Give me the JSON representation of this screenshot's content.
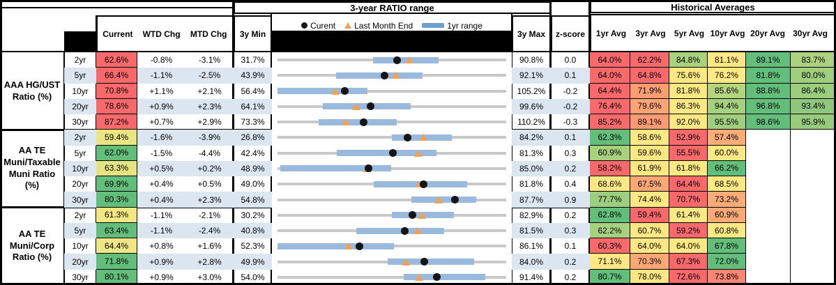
{
  "palette": {
    "band_blue": "#DCE6F1",
    "bar_blue": "#9ABADD",
    "legend_swatch_blue": "#6C9DD3",
    "triangle_orange": "#F2A054",
    "dot_black": "#151515",
    "track_gray": "#C9C9C9",
    "heat_red": "#F8696B",
    "heat_orange": "#FBA776",
    "heat_yellow": "#FFE884",
    "heat_lightgreen": "#A9D27F",
    "heat_green": "#63BE7B"
  },
  "header": {
    "range_title": "3-year RATIO range",
    "hist_title": "Historical Averages",
    "cols": {
      "current": "Current",
      "wtd": "WTD Chg",
      "mtd": "MTD Chg",
      "min": "3y Min",
      "max": "3y Max",
      "z": "z-score"
    },
    "avg_cols": [
      "1yr Avg",
      "3yr Avg",
      "5yr Avg",
      "10yr Avg",
      "20yr Avg",
      "30yr Avg"
    ],
    "legend": {
      "current": "Curent",
      "last_month": "Last Month End",
      "range": "1yr range"
    }
  },
  "chart_data": {
    "type": "table",
    "title": "3-year RATIO range",
    "subtitle": "Historical Averages",
    "bullet_semantics": {
      "dot": "Current",
      "triangle": "Last Month End",
      "bar": "1yr range",
      "axis": "scaled from 3y Min to 3y Max"
    },
    "columns": [
      "Current",
      "WTD Chg",
      "MTD Chg",
      "3y Min",
      "3y Max",
      "z-score",
      "1yr Avg",
      "3yr Avg",
      "5yr Avg",
      "10yr Avg",
      "20yr Avg",
      "30yr Avg"
    ],
    "sections": [
      {
        "id": "aaa-hg-ust",
        "label": "AAA HG/UST\nRatio (%)",
        "rows": [
          {
            "tenor": "2yr",
            "current": "62.6%",
            "current_bg": "#F8696B",
            "wtd": "-0.8%",
            "mtd": "-3.1%",
            "min": "31.7%",
            "max": "90.8%",
            "z": "0.0",
            "bullet": {
              "axis_min": 31.7,
              "axis_max": 90.8,
              "current": 62.6,
              "last_month_end": 65.7,
              "yr_range": [
                56.4,
                73.4
              ]
            },
            "avgs": [
              {
                "v": "64.0%",
                "bg": "#F8696B"
              },
              {
                "v": "62.2%",
                "bg": "#F8696B"
              },
              {
                "v": "84.8%",
                "bg": "#A9D27F"
              },
              {
                "v": "81.1%",
                "bg": "#FFE884"
              },
              {
                "v": "89.1%",
                "bg": "#63BE7B"
              },
              {
                "v": "83.7%",
                "bg": "#ABD37F"
              }
            ]
          },
          {
            "tenor": "5yr",
            "current": "66.4%",
            "current_bg": "#F8696B",
            "wtd": "-1.1%",
            "mtd": "-2.5%",
            "min": "43.9%",
            "max": "92.1%",
            "z": "0.1",
            "bullet": {
              "axis_min": 43.9,
              "axis_max": 92.1,
              "current": 66.4,
              "last_month_end": 68.9,
              "yr_range": [
                56.2,
                74.4
              ]
            },
            "avgs": [
              {
                "v": "64.0%",
                "bg": "#F8696B"
              },
              {
                "v": "64.8%",
                "bg": "#F8696B"
              },
              {
                "v": "75.6%",
                "bg": "#FFE884"
              },
              {
                "v": "76.2%",
                "bg": "#FEE983"
              },
              {
                "v": "81.8%",
                "bg": "#63BE7B"
              },
              {
                "v": "80.0%",
                "bg": "#9FCE7E"
              }
            ]
          },
          {
            "tenor": "10yr",
            "current": "70.8%",
            "current_bg": "#F8696B",
            "wtd": "+1.1%",
            "mtd": "+2.1%",
            "min": "56.4%",
            "max": "105.2%",
            "z": "-0.2",
            "bullet": {
              "axis_min": 56.4,
              "axis_max": 105.2,
              "current": 70.8,
              "last_month_end": 68.7,
              "yr_range": [
                56.4,
                75.6
              ]
            },
            "avgs": [
              {
                "v": "64.4%",
                "bg": "#F8696B"
              },
              {
                "v": "71.9%",
                "bg": "#FB9E74"
              },
              {
                "v": "81.8%",
                "bg": "#FFE884"
              },
              {
                "v": "85.6%",
                "bg": "#B3D580"
              },
              {
                "v": "88.8%",
                "bg": "#63BE7B"
              },
              {
                "v": "86.4%",
                "bg": "#9CCD7E"
              }
            ]
          },
          {
            "tenor": "20yr",
            "current": "78.6%",
            "current_bg": "#F8696B",
            "wtd": "+0.9%",
            "mtd": "+2.3%",
            "min": "64.1%",
            "max": "99.6%",
            "z": "-0.2",
            "bullet": {
              "axis_min": 64.1,
              "axis_max": 99.6,
              "current": 78.6,
              "last_month_end": 76.3,
              "yr_range": [
                71.1,
                84.8
              ]
            },
            "avgs": [
              {
                "v": "76.4%",
                "bg": "#F8696B"
              },
              {
                "v": "79.6%",
                "bg": "#FBA476"
              },
              {
                "v": "86.3%",
                "bg": "#FFE884"
              },
              {
                "v": "94.4%",
                "bg": "#A5D07E"
              },
              {
                "v": "96.8%",
                "bg": "#63BE7B"
              },
              {
                "v": "93.4%",
                "bg": "#8FC77C"
              }
            ]
          },
          {
            "tenor": "30yr",
            "current": "87.2%",
            "current_bg": "#F8696B",
            "wtd": "+0.7%",
            "mtd": "+2.9%",
            "min": "73.3%",
            "max": "110.2%",
            "z": "-0.3",
            "bullet": {
              "axis_min": 73.3,
              "axis_max": 110.2,
              "current": 87.2,
              "last_month_end": 84.3,
              "yr_range": [
                79.9,
                92.5
              ]
            },
            "avgs": [
              {
                "v": "85.2%",
                "bg": "#F8696B"
              },
              {
                "v": "89.1%",
                "bg": "#FB9A73"
              },
              {
                "v": "92.0%",
                "bg": "#FFE884"
              },
              {
                "v": "95.5%",
                "bg": "#A0CE7E"
              },
              {
                "v": "98.6%",
                "bg": "#63BE7B"
              },
              {
                "v": "95.9%",
                "bg": "#98CB7D"
              }
            ]
          }
        ]
      },
      {
        "id": "aa-te-muni-taxable",
        "label": "AA TE\nMuni/Taxable\nMuni Ratio\n(%)",
        "rows": [
          {
            "tenor": "2yr",
            "current": "59.4%",
            "current_bg": "#E9E582",
            "wtd": "-1.6%",
            "mtd": "-3.9%",
            "min": "26.8%",
            "max": "84.2%",
            "z": "0.1",
            "bullet": {
              "axis_min": 26.8,
              "axis_max": 84.2,
              "current": 59.4,
              "last_month_end": 63.3,
              "yr_range": [
                55.5,
                70.6
              ]
            },
            "avgs": [
              {
                "v": "62.3%",
                "bg": "#63BE7B"
              },
              {
                "v": "58.6%",
                "bg": "#FFE884"
              },
              {
                "v": "52.9%",
                "bg": "#F8696B"
              },
              {
                "v": "57.4%",
                "bg": "#FBAC77"
              },
              {
                "v": "",
                "bg": ""
              },
              {
                "v": "",
                "bg": ""
              }
            ]
          },
          {
            "tenor": "5yr",
            "current": "62.0%",
            "current_bg": "#63BE7B",
            "wtd": "-1.5%",
            "mtd": "-4.4%",
            "min": "42.4%",
            "max": "81.3%",
            "z": "0.3",
            "bullet": {
              "axis_min": 42.4,
              "axis_max": 81.3,
              "current": 62.0,
              "last_month_end": 66.4,
              "yr_range": [
                52.5,
                69.5
              ]
            },
            "avgs": [
              {
                "v": "60.9%",
                "bg": "#A8D17F"
              },
              {
                "v": "59.6%",
                "bg": "#FFE884"
              },
              {
                "v": "55.5%",
                "bg": "#F8696B"
              },
              {
                "v": "60.0%",
                "bg": "#FCE983"
              },
              {
                "v": "",
                "bg": ""
              },
              {
                "v": "",
                "bg": ""
              }
            ]
          },
          {
            "tenor": "10yr",
            "current": "63.3%",
            "current_bg": "#E4E482",
            "wtd": "+0.5%",
            "mtd": "+0.2%",
            "min": "48.9%",
            "max": "85.0%",
            "z": "0.2",
            "bullet": {
              "axis_min": 48.9,
              "axis_max": 85.0,
              "current": 63.3,
              "last_month_end": 63.1,
              "yr_range": [
                49.3,
                66.8
              ]
            },
            "avgs": [
              {
                "v": "58.2%",
                "bg": "#F8696B"
              },
              {
                "v": "61.9%",
                "bg": "#FFE884"
              },
              {
                "v": "61.8%",
                "bg": "#FBE983"
              },
              {
                "v": "66.2%",
                "bg": "#63BE7B"
              },
              {
                "v": "",
                "bg": ""
              },
              {
                "v": "",
                "bg": ""
              }
            ]
          },
          {
            "tenor": "20yr",
            "current": "69.9%",
            "current_bg": "#63BE7B",
            "wtd": "+0.4%",
            "mtd": "+0.5%",
            "min": "49.0%",
            "max": "81.8%",
            "z": "0.4",
            "bullet": {
              "axis_min": 49.0,
              "axis_max": 81.8,
              "current": 69.9,
              "last_month_end": 69.4,
              "yr_range": [
                62.8,
                76.2
              ]
            },
            "avgs": [
              {
                "v": "68.6%",
                "bg": "#FFE884"
              },
              {
                "v": "67.5%",
                "bg": "#FBA776"
              },
              {
                "v": "64.4%",
                "bg": "#F8696B"
              },
              {
                "v": "68.5%",
                "bg": "#FEE983"
              },
              {
                "v": "",
                "bg": ""
              },
              {
                "v": "",
                "bg": ""
              }
            ]
          },
          {
            "tenor": "30yr",
            "current": "80.3%",
            "current_bg": "#63BE7B",
            "wtd": "+0.4%",
            "mtd": "+2.3%",
            "min": "54.8%",
            "max": "87.7%",
            "z": "0.9",
            "bullet": {
              "axis_min": 54.8,
              "axis_max": 87.7,
              "current": 80.3,
              "last_month_end": 78.0,
              "yr_range": [
                74.1,
                83.4
              ]
            },
            "avgs": [
              {
                "v": "77.7%",
                "bg": "#9DCD7E"
              },
              {
                "v": "74.4%",
                "bg": "#FFE884"
              },
              {
                "v": "70.7%",
                "bg": "#F8696B"
              },
              {
                "v": "73.2%",
                "bg": "#FBAB77"
              },
              {
                "v": "",
                "bg": ""
              },
              {
                "v": "",
                "bg": ""
              }
            ]
          }
        ]
      },
      {
        "id": "aa-te-muni-corp",
        "label": "AA TE\nMuni/Corp\nRatio (%)",
        "rows": [
          {
            "tenor": "2yr",
            "current": "61.3%",
            "current_bg": "#F3E783",
            "wtd": "-1.1%",
            "mtd": "-2.1%",
            "min": "30.2%",
            "max": "82.9%",
            "z": "0.2",
            "bullet": {
              "axis_min": 30.2,
              "axis_max": 82.9,
              "current": 61.3,
              "last_month_end": 63.4,
              "yr_range": [
                56.6,
                70.8
              ]
            },
            "avgs": [
              {
                "v": "62.8%",
                "bg": "#63BE7B"
              },
              {
                "v": "59.4%",
                "bg": "#F8696B"
              },
              {
                "v": "61.4%",
                "bg": "#FCE983"
              },
              {
                "v": "60.9%",
                "bg": "#FBA977"
              },
              {
                "v": "",
                "bg": ""
              },
              {
                "v": "",
                "bg": ""
              }
            ]
          },
          {
            "tenor": "5yr",
            "current": "63.4%",
            "current_bg": "#63BE7B",
            "wtd": "-1.1%",
            "mtd": "-2.4%",
            "min": "40.8%",
            "max": "81.5%",
            "z": "0.3",
            "bullet": {
              "axis_min": 40.8,
              "axis_max": 81.5,
              "current": 63.4,
              "last_month_end": 65.8,
              "yr_range": [
                54.8,
                70.5
              ]
            },
            "avgs": [
              {
                "v": "62.2%",
                "bg": "#A8D17F"
              },
              {
                "v": "60.7%",
                "bg": "#FFE884"
              },
              {
                "v": "59.2%",
                "bg": "#F8696B"
              },
              {
                "v": "60.8%",
                "bg": "#FDE983"
              },
              {
                "v": "",
                "bg": ""
              },
              {
                "v": "",
                "bg": ""
              }
            ]
          },
          {
            "tenor": "10yr",
            "current": "64.4%",
            "current_bg": "#F0E683",
            "wtd": "+0.8%",
            "mtd": "+1.6%",
            "min": "52.3%",
            "max": "86.1%",
            "z": "0.1",
            "bullet": {
              "axis_min": 52.3,
              "axis_max": 86.1,
              "current": 64.4,
              "last_month_end": 62.8,
              "yr_range": [
                52.3,
                69.5
              ]
            },
            "avgs": [
              {
                "v": "60.3%",
                "bg": "#F8696B"
              },
              {
                "v": "64.0%",
                "bg": "#FFE884"
              },
              {
                "v": "64.0%",
                "bg": "#FCE983"
              },
              {
                "v": "67.8%",
                "bg": "#63BE7B"
              },
              {
                "v": "",
                "bg": ""
              },
              {
                "v": "",
                "bg": ""
              }
            ]
          },
          {
            "tenor": "20yr",
            "current": "71.8%",
            "current_bg": "#63BE7B",
            "wtd": "+0.9%",
            "mtd": "+2.8%",
            "min": "49.9%",
            "max": "84.0%",
            "z": "0.2",
            "bullet": {
              "axis_min": 49.9,
              "axis_max": 84.0,
              "current": 71.8,
              "last_month_end": 69.0,
              "yr_range": [
                66.3,
                79.2
              ]
            },
            "avgs": [
              {
                "v": "71.1%",
                "bg": "#FFE884"
              },
              {
                "v": "70.3%",
                "bg": "#FBA776"
              },
              {
                "v": "67.3%",
                "bg": "#F8696B"
              },
              {
                "v": "72.0%",
                "bg": "#63BE7B"
              },
              {
                "v": "",
                "bg": ""
              },
              {
                "v": "",
                "bg": ""
              }
            ]
          },
          {
            "tenor": "30yr",
            "current": "80.1%",
            "current_bg": "#63BE7B",
            "wtd": "+0.9%",
            "mtd": "+3.0%",
            "min": "54.0%",
            "max": "91.4%",
            "z": "0.2",
            "bullet": {
              "axis_min": 54.0,
              "axis_max": 91.4,
              "current": 80.1,
              "last_month_end": 77.1,
              "yr_range": [
                74.6,
                88.0
              ]
            },
            "avgs": [
              {
                "v": "80.7%",
                "bg": "#63BE7B"
              },
              {
                "v": "78.0%",
                "bg": "#FFE884"
              },
              {
                "v": "72.6%",
                "bg": "#F8696B"
              },
              {
                "v": "73.8%",
                "bg": "#F98672"
              },
              {
                "v": "",
                "bg": ""
              },
              {
                "v": "",
                "bg": ""
              }
            ]
          }
        ]
      }
    ]
  }
}
